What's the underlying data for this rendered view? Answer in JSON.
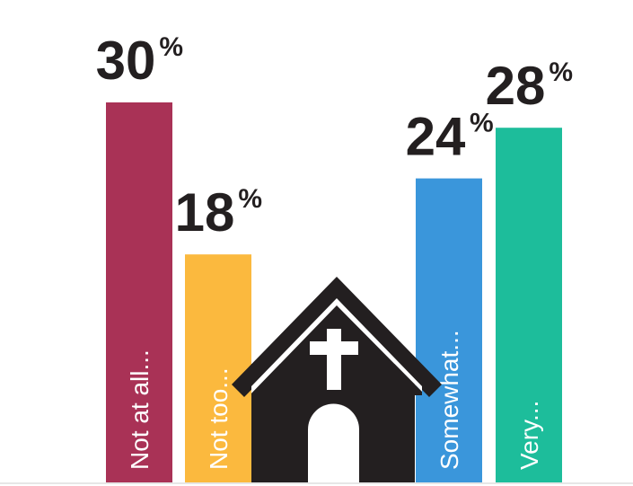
{
  "chart_data": {
    "type": "bar",
    "categories": [
      "Not at all...",
      "Not too...",
      "Somewhat...",
      "Very..."
    ],
    "values": [
      30,
      18,
      24,
      28
    ],
    "value_suffix": "%",
    "colors": [
      "#a93256",
      "#fbb93e",
      "#3a96db",
      "#1dbd9b"
    ]
  }
}
